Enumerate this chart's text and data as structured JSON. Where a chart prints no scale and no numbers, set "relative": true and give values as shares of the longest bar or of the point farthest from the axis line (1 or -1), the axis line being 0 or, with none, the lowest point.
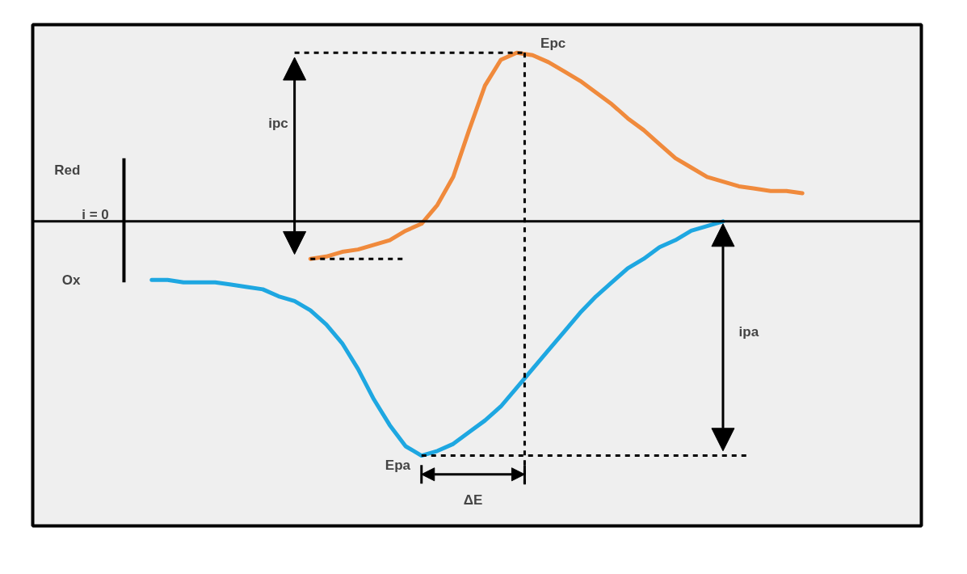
{
  "chart_data": {
    "type": "line",
    "relative": true,
    "categories": [
      null,
      null,
      null,
      null,
      null,
      null,
      null,
      null,
      null,
      null,
      null,
      null,
      null,
      null,
      null,
      null,
      null,
      null,
      null,
      null,
      null,
      null,
      null,
      null,
      null,
      null,
      null,
      null,
      null,
      null,
      null,
      null,
      null,
      null,
      null,
      null,
      null,
      null,
      null,
      null,
      null,
      null
    ],
    "series": [
      {
        "color": "#1ea7e1",
        "values": [
          -0.25,
          -0.25,
          -0.26,
          -0.26,
          -0.26,
          -0.27,
          -0.28,
          -0.29,
          -0.32,
          -0.34,
          -0.38,
          -0.44,
          -0.52,
          -0.63,
          -0.76,
          -0.87,
          -0.96,
          -1,
          -0.98,
          -0.95,
          -0.9,
          -0.85,
          -0.79,
          -0.71,
          -0.63,
          -0.55,
          -0.47,
          -0.39,
          -0.32,
          -0.26,
          -0.2,
          -0.16,
          -0.11,
          -0.08,
          -0.04,
          -0.02,
          0,
          null,
          null,
          null,
          null,
          null
        ]
      },
      {
        "color": "#f08a3c",
        "values": [
          null,
          null,
          null,
          null,
          null,
          null,
          null,
          null,
          null,
          null,
          -0.16,
          -0.15,
          -0.13,
          -0.12,
          -0.1,
          -0.08,
          -0.04,
          -0.01,
          0.07,
          0.19,
          0.39,
          0.58,
          0.69,
          0.72,
          0.71,
          0.68,
          0.64,
          0.6,
          0.55,
          0.5,
          0.44,
          0.39,
          0.33,
          0.27,
          0.23,
          0.19,
          0.17,
          0.15,
          0.14,
          0.13,
          0.13,
          0.12
        ]
      }
    ],
    "ref_lines": [
      {
        "axis": "y",
        "value": 0.72,
        "line_style": "dashed",
        "color": "#000000"
      },
      {
        "axis": "y",
        "value": -0.16,
        "line_style": "dashed",
        "color": "#000000"
      },
      {
        "axis": "y",
        "value": -1,
        "line_style": "dashed",
        "color": "#000000"
      }
    ],
    "annotations": [
      "Red",
      "i = 0",
      "Ox",
      "ipc",
      "Epc",
      "ipa",
      "Epa",
      "ΔE"
    ],
    "grid": false,
    "line_style": "solid",
    "marker": "none"
  }
}
